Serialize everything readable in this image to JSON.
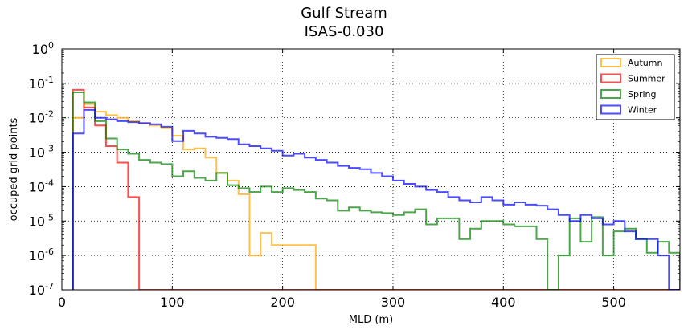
{
  "chart_data": {
    "type": "step-histogram",
    "title": "Gulf Stream",
    "subtitle": "ISAS-0.030",
    "xlabel": "MLD (m)",
    "ylabel": "occuped grid points",
    "xlim": [
      0,
      560
    ],
    "ylim": [
      1e-07,
      1
    ],
    "yscale": "log",
    "grid": true,
    "legend_position": "top-right",
    "x_ticks": [
      0,
      100,
      200,
      300,
      400,
      500
    ],
    "y_ticks": [
      {
        "exp": 0,
        "label_base": "10",
        "label_exp": "0"
      },
      {
        "exp": -1,
        "label_base": "10",
        "label_exp": "-1"
      },
      {
        "exp": -2,
        "label_base": "10",
        "label_exp": "-2"
      },
      {
        "exp": -3,
        "label_base": "10",
        "label_exp": "-3"
      },
      {
        "exp": -4,
        "label_base": "10",
        "label_exp": "-4"
      },
      {
        "exp": -5,
        "label_base": "10",
        "label_exp": "-5"
      },
      {
        "exp": -6,
        "label_base": "10",
        "label_exp": "-6"
      },
      {
        "exp": -7,
        "label_base": "10",
        "label_exp": "-7"
      }
    ],
    "bin_edges": [
      10,
      20,
      30,
      40,
      50,
      60,
      70,
      80,
      90,
      100,
      110,
      120,
      130,
      140,
      150,
      160,
      170,
      180,
      190,
      200,
      210,
      220,
      230,
      240,
      250,
      260,
      270,
      280,
      290,
      300,
      310,
      320,
      330,
      340,
      350,
      360,
      370,
      380,
      390,
      400,
      410,
      420,
      430,
      440,
      450,
      460,
      470,
      480,
      490,
      500,
      510,
      520,
      530,
      540,
      550,
      560
    ],
    "series": [
      {
        "name": "Autumn",
        "color": "#ffa500",
        "values": [
          0.01,
          0.025,
          0.015,
          0.012,
          0.01,
          0.008,
          0.007,
          0.006,
          0.005,
          0.003,
          0.0012,
          0.0013,
          0.0007,
          0.00025,
          0.00015,
          6e-05,
          1e-06,
          4.5e-06,
          2e-06,
          2e-06,
          2e-06,
          2e-06,
          0,
          0,
          0,
          0,
          0,
          0,
          0,
          0,
          0,
          0,
          0,
          0,
          0,
          0,
          0,
          0,
          0,
          0,
          0,
          0,
          0,
          0,
          0,
          0,
          0,
          0,
          0,
          0,
          0,
          0,
          0,
          0,
          0
        ]
      },
      {
        "name": "Summer",
        "color": "#ff0000",
        "values": [
          0.065,
          0.02,
          0.006,
          0.0015,
          0.0005,
          5e-05,
          0,
          0,
          0,
          0,
          0,
          0,
          0,
          0,
          0,
          0,
          0,
          0,
          0,
          0,
          0,
          0,
          0,
          0,
          0,
          0,
          0,
          0,
          0,
          0,
          0,
          0,
          0,
          0,
          0,
          0,
          0,
          0,
          0,
          0,
          0,
          0,
          0,
          0,
          0,
          0,
          0,
          0,
          0,
          0,
          0,
          0,
          0,
          0,
          0
        ]
      },
      {
        "name": "Spring",
        "color": "#008000",
        "values": [
          0.055,
          0.028,
          0.008,
          0.0025,
          0.0012,
          0.0009,
          0.0006,
          0.0005,
          0.00045,
          0.0002,
          0.00028,
          0.00018,
          0.00015,
          0.00025,
          0.00011,
          9e-05,
          7e-05,
          0.0001,
          7e-05,
          9e-05,
          8e-05,
          7e-05,
          4.5e-05,
          4e-05,
          2e-05,
          2.5e-05,
          2e-05,
          1.8e-05,
          1.7e-05,
          1.5e-05,
          1.8e-05,
          2.2e-05,
          8e-06,
          1.2e-05,
          1.2e-05,
          3e-06,
          6e-06,
          1e-05,
          1e-05,
          8e-06,
          7e-06,
          7e-06,
          3e-06,
          0,
          1e-06,
          1.2e-05,
          2.5e-06,
          1.3e-05,
          1e-06,
          5e-06,
          6e-06,
          3e-06,
          1.2e-06,
          2.5e-06,
          1.2e-06
        ]
      },
      {
        "name": "Winter",
        "color": "#0000ff",
        "values": [
          0.0035,
          0.017,
          0.01,
          0.009,
          0.008,
          0.0075,
          0.007,
          0.0065,
          0.0055,
          0.0021,
          0.0042,
          0.0035,
          0.0028,
          0.0026,
          0.0024,
          0.0017,
          0.0015,
          0.0013,
          0.0011,
          0.0008,
          0.0009,
          0.0007,
          0.0006,
          0.0005,
          0.0004,
          0.00035,
          0.00032,
          0.00025,
          0.0002,
          0.00015,
          0.00012,
          0.0001,
          8e-05,
          7e-05,
          5e-05,
          4e-05,
          3.5e-05,
          5e-05,
          4e-05,
          3e-05,
          3.5e-05,
          3e-05,
          2.8e-05,
          2.2e-05,
          1.5e-05,
          1e-05,
          1.5e-05,
          1.2e-05,
          8e-06,
          1e-05,
          5e-06,
          3e-06,
          3e-06,
          1e-06,
          0
        ]
      }
    ]
  }
}
